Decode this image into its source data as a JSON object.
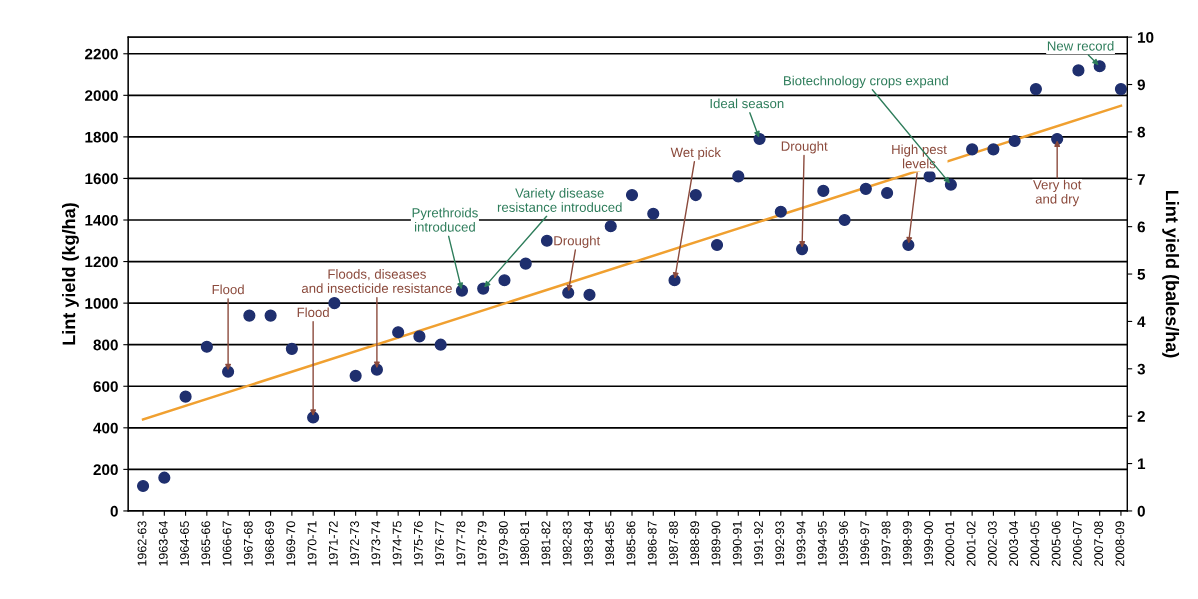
{
  "chart_data": {
    "type": "scatter",
    "ylabel": "Lint yield (kg/ha)",
    "y2label": "Lint yield (bales/ha)",
    "categories": [
      "1962-63",
      "1963-64",
      "1964-65",
      "1965-66",
      "1066-67",
      "1967-68",
      "1968-69",
      "1969-70",
      "1970-71",
      "1971-72",
      "1972-73",
      "1973-74",
      "1974-75",
      "1975-76",
      "1976-77",
      "1977-78",
      "1978-79",
      "1979-80",
      "1980-81",
      "1981-82",
      "1982-83",
      "1983-84",
      "1984-85",
      "1985-86",
      "1986-87",
      "1987-88",
      "1988-89",
      "1989-90",
      "1990-91",
      "1991-92",
      "1992-93",
      "1993-94",
      "1994-95",
      "1995-96",
      "1996-97",
      "1997-98",
      "1998-99",
      "1999-00",
      "2000-01",
      "2001-02",
      "2002-03",
      "2003-04",
      "2004-05",
      "2005-06",
      "2006-07",
      "2007-08",
      "2008-09"
    ],
    "series": [
      {
        "color": "#1f2f6e",
        "marker": "circle",
        "values": [
          120,
          160,
          550,
          790,
          670,
          940,
          940,
          780,
          450,
          1000,
          650,
          680,
          860,
          840,
          800,
          1060,
          1070,
          1110,
          1190,
          1300,
          1050,
          1040,
          1370,
          1520,
          1430,
          1110,
          1520,
          1280,
          1610,
          1790,
          1440,
          1260,
          1540,
          1400,
          1550,
          1530,
          1280,
          1610,
          1570,
          1740,
          1740,
          1780,
          2030,
          1790,
          2120,
          2140,
          2030
        ]
      },
      {
        "type": "line",
        "color": "#f0a030",
        "values": [
          440,
          null,
          null,
          null,
          null,
          null,
          null,
          null,
          null,
          null,
          null,
          null,
          null,
          null,
          null,
          null,
          null,
          null,
          null,
          null,
          null,
          null,
          null,
          null,
          null,
          null,
          null,
          null,
          null,
          null,
          null,
          null,
          null,
          null,
          null,
          null,
          null,
          null,
          null,
          null,
          null,
          null,
          null,
          null,
          null,
          null,
          1950
        ]
      }
    ],
    "ylim": [
      0,
      2280
    ],
    "yticks": [
      0,
      200,
      400,
      600,
      800,
      1000,
      1200,
      1400,
      1600,
      1800,
      2000,
      2200
    ],
    "y2lim": [
      0,
      10
    ],
    "y2ticks": [
      0,
      1,
      2,
      3,
      4,
      5,
      6,
      7,
      8,
      9,
      10
    ],
    "grid": "y",
    "annotations": [
      {
        "text": "Flood",
        "x": "1066-67",
        "y": 670
      },
      {
        "text": "Flood",
        "x": "1970-71",
        "y": 450
      },
      {
        "text": "Floods, diseases\nand insecticide resistance",
        "x": "1973-74",
        "y": 680
      },
      {
        "text": "Pyrethroids\nintroduced",
        "x": "1977-78",
        "y": 1060
      },
      {
        "text": "Variety disease\nresistance introduced",
        "x": "1978-79",
        "y": 1070
      },
      {
        "text": "Drought",
        "x": "1982-83",
        "y": 1050
      },
      {
        "text": "Wet pick",
        "x": "1987-88",
        "y": 1110
      },
      {
        "text": "Ideal season",
        "x": "1991-92",
        "y": 1790
      },
      {
        "text": "Drought",
        "x": "1993-94",
        "y": 1260
      },
      {
        "text": "High pest\nlevels",
        "x": "1998-99",
        "y": 1280
      },
      {
        "text": "Biotechnology crops expand",
        "x": "2000-01",
        "y": 1570
      },
      {
        "text": "New record",
        "x": "2007-08",
        "y": 2140
      },
      {
        "text": "Very hot\nand dry",
        "x": "2005-06",
        "y": 1790
      }
    ]
  }
}
